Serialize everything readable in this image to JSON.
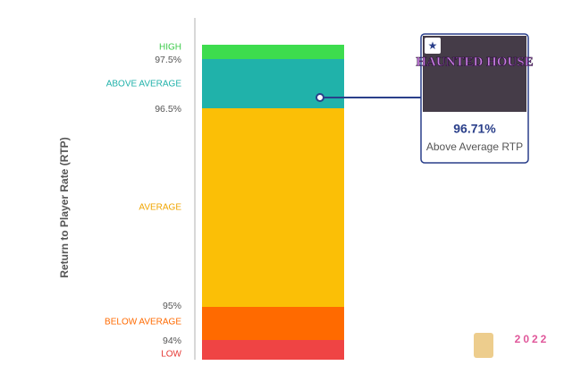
{
  "y_axis_label": "Return to Player Rate (RTP)",
  "bands": [
    {
      "label": "HIGH"
    },
    {
      "label": "ABOVE AVERAGE"
    },
    {
      "label": "AVERAGE"
    },
    {
      "label": "BELOW AVERAGE"
    },
    {
      "label": "LOW"
    }
  ],
  "ticks": [
    "97.5%",
    "96.5%",
    "95%",
    "94%"
  ],
  "card": {
    "image_title": "HAUNTED HOUSE",
    "value": "96.71%",
    "caption": "Above Average RTP"
  },
  "watermark": "2022"
}
